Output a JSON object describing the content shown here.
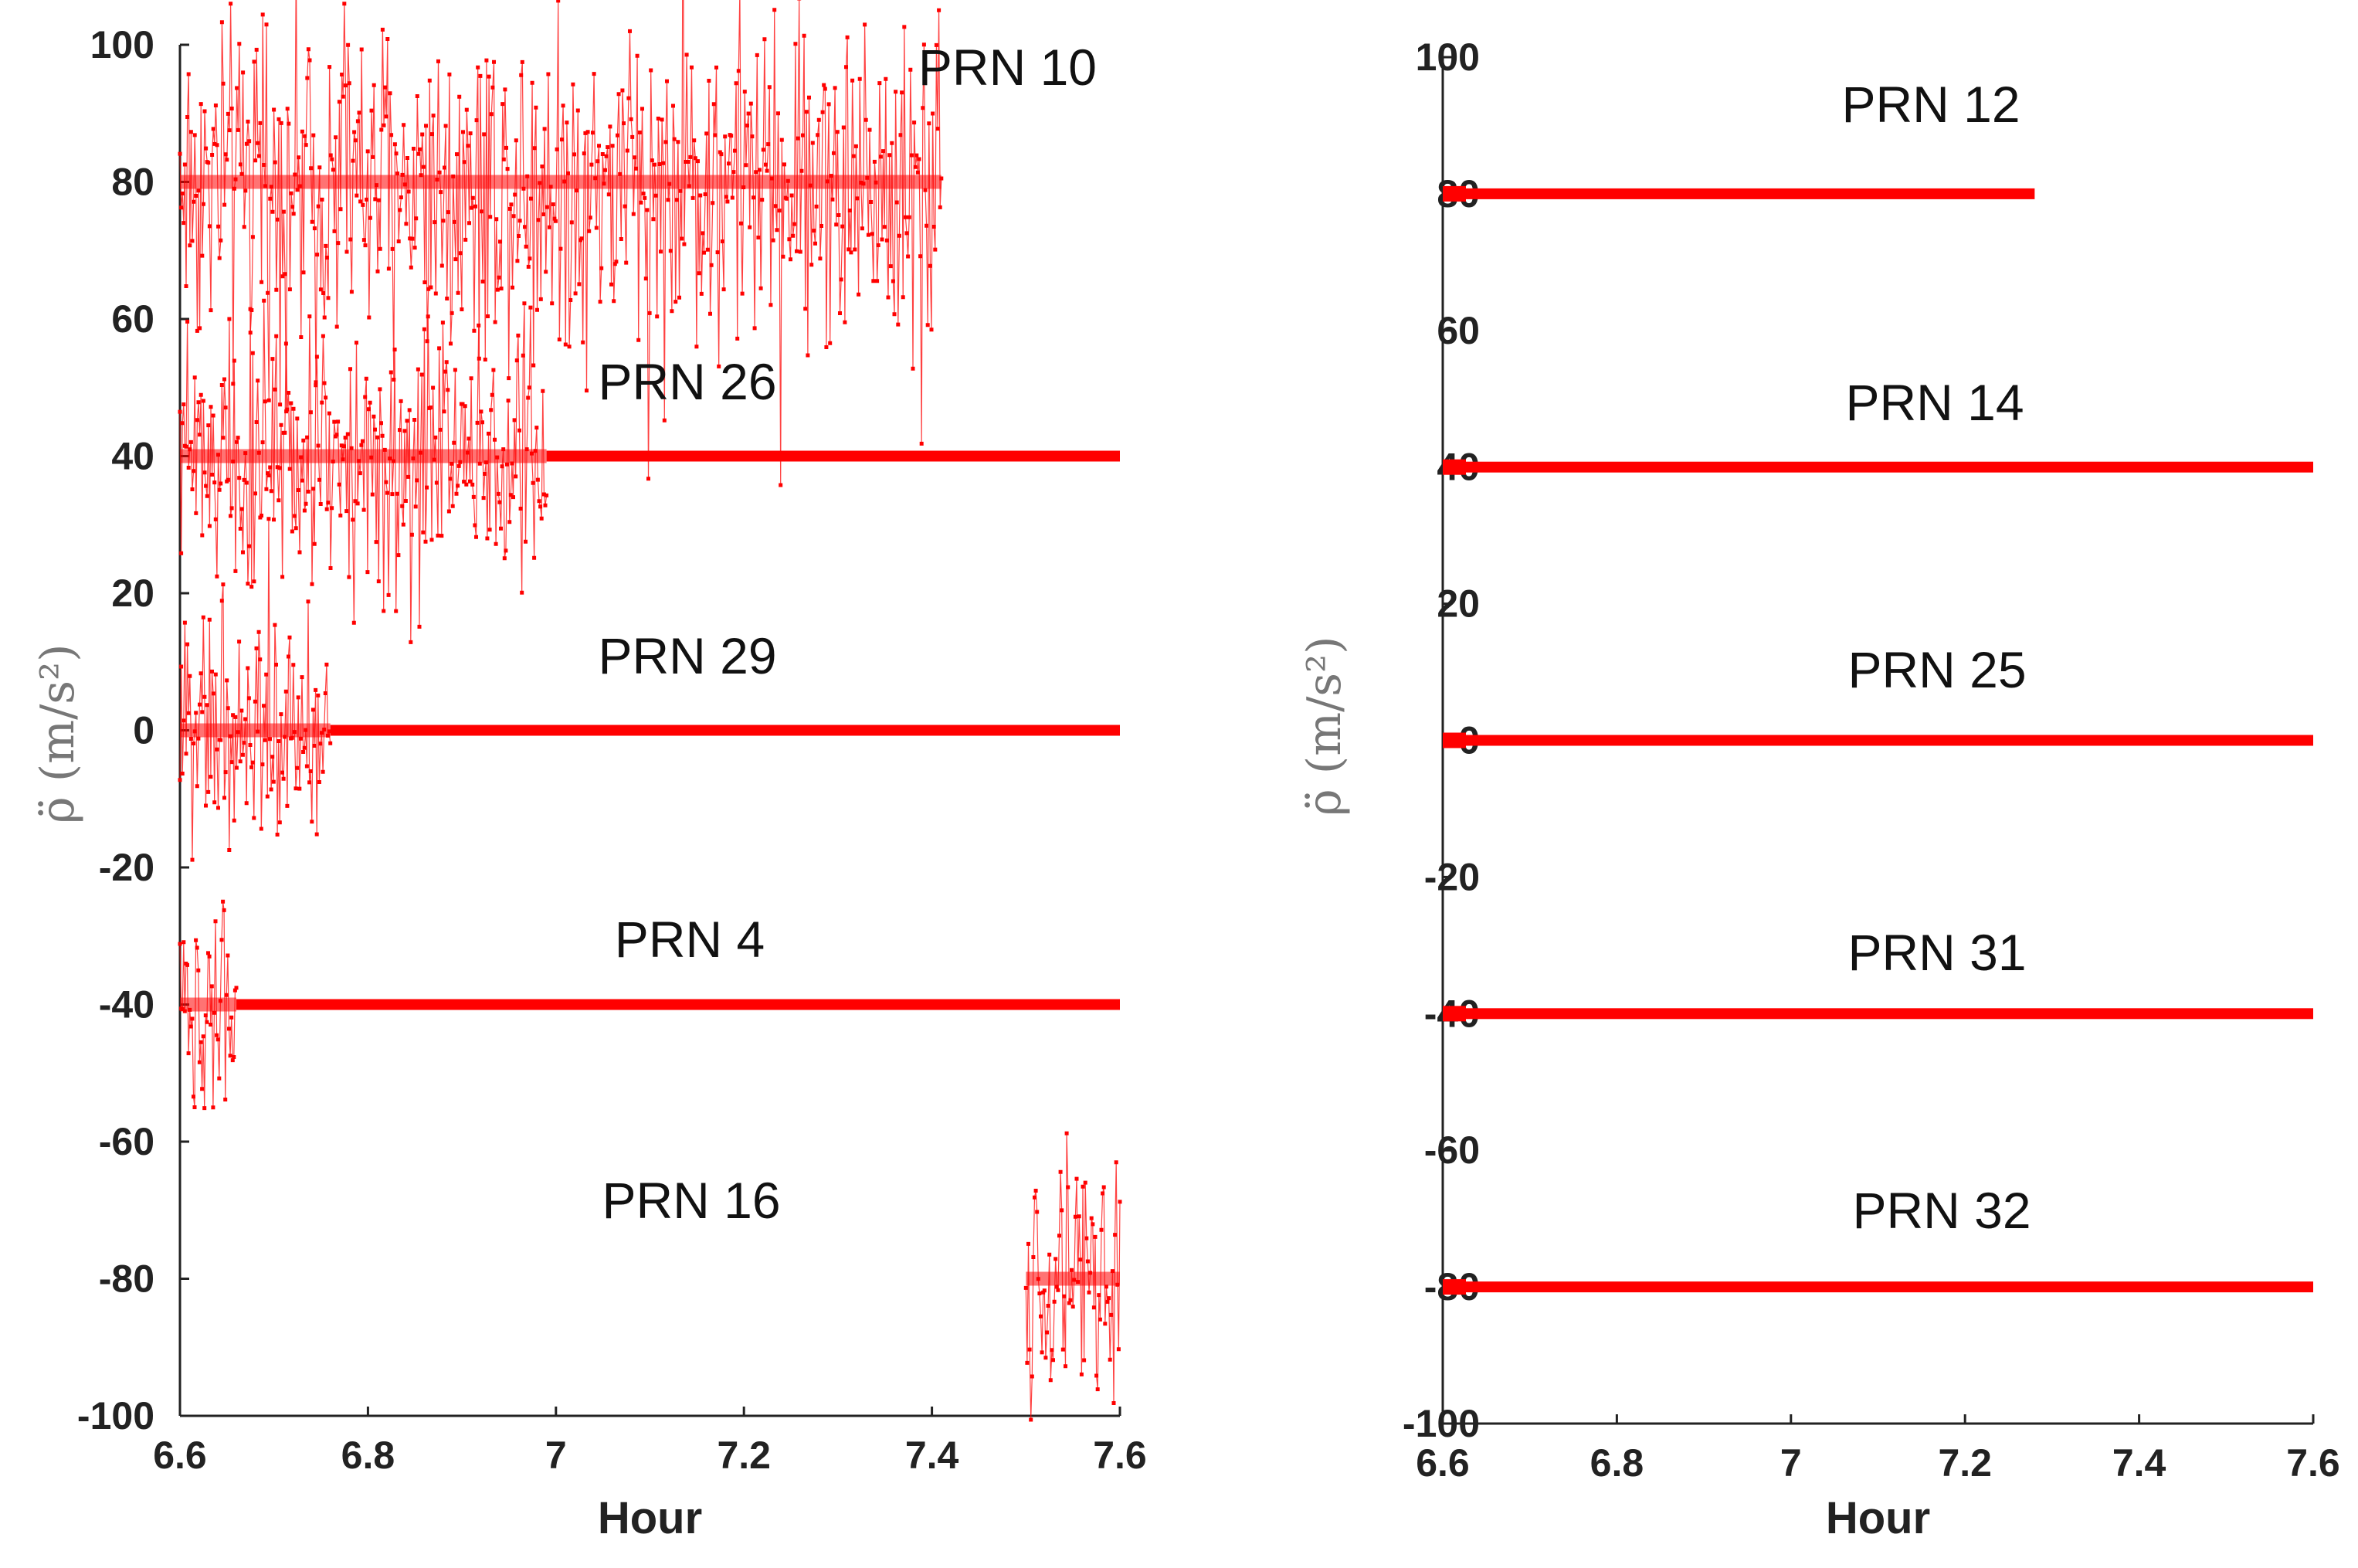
{
  "chart_data": [
    {
      "type": "line",
      "xlabel": "Hour",
      "ylabel": "ρ̈ (m/s²)",
      "xlim": [
        6.6,
        7.6
      ],
      "ylim": [
        -100,
        100
      ],
      "xticks": [
        "6.6",
        "6.8",
        "7",
        "7.2",
        "7.4",
        "7.6"
      ],
      "yticks": [
        "100",
        "80",
        "60",
        "40",
        "20",
        "0",
        "-20",
        "-40",
        "-60",
        "-80",
        "-100"
      ],
      "series": [
        {
          "name": "PRN 10",
          "level": 80,
          "segments": [
            [
              6.6,
              7.41
            ]
          ],
          "noisy_until": 7.41,
          "spread": 12
        },
        {
          "name": "PRN 26",
          "level": 40,
          "segments": [
            [
              6.6,
              7.6
            ]
          ],
          "noisy_until": 6.99,
          "spread": 9
        },
        {
          "name": "PRN 29",
          "level": 0,
          "segments": [
            [
              6.6,
              7.6
            ]
          ],
          "noisy_until": 6.76,
          "spread": 8
        },
        {
          "name": "PRN 4",
          "level": -40,
          "segments": [
            [
              6.6,
              7.6
            ]
          ],
          "noisy_until": 6.66,
          "spread": 6
        },
        {
          "name": "PRN 16",
          "level": -80,
          "segments": [
            [
              7.5,
              7.6
            ]
          ],
          "noisy_until": 7.6,
          "spread": 9
        }
      ],
      "color": "#ff0000"
    },
    {
      "type": "line",
      "xlabel": "Hour",
      "ylabel": "ρ̈ (m/s²)",
      "xlim": [
        6.6,
        7.6
      ],
      "ylim": [
        -100,
        100
      ],
      "xticks": [
        "6.6",
        "6.8",
        "7",
        "7.2",
        "7.4",
        "7.6"
      ],
      "yticks": [
        "100",
        "80",
        "60",
        "40",
        "20",
        "0",
        "-20",
        "-40",
        "-60",
        "-80",
        "-100"
      ],
      "series": [
        {
          "name": "PRN 12",
          "level": 80,
          "segments": [
            [
              6.6,
              7.28
            ]
          ],
          "noisy_until": 6.6,
          "spread": 0.5
        },
        {
          "name": "PRN 14",
          "level": 40,
          "segments": [
            [
              6.6,
              7.6
            ]
          ],
          "noisy_until": 6.6,
          "spread": 0.5
        },
        {
          "name": "PRN 25",
          "level": 0,
          "segments": [
            [
              6.6,
              7.6
            ]
          ],
          "noisy_until": 6.6,
          "spread": 0.5
        },
        {
          "name": "PRN 31",
          "level": -40,
          "segments": [
            [
              6.6,
              7.6
            ]
          ],
          "noisy_until": 6.6,
          "spread": 0.5
        },
        {
          "name": "PRN 32",
          "level": -80,
          "segments": [
            [
              6.6,
              7.6
            ]
          ],
          "noisy_until": 6.6,
          "spread": 0.5
        }
      ],
      "color": "#ff0000"
    }
  ]
}
